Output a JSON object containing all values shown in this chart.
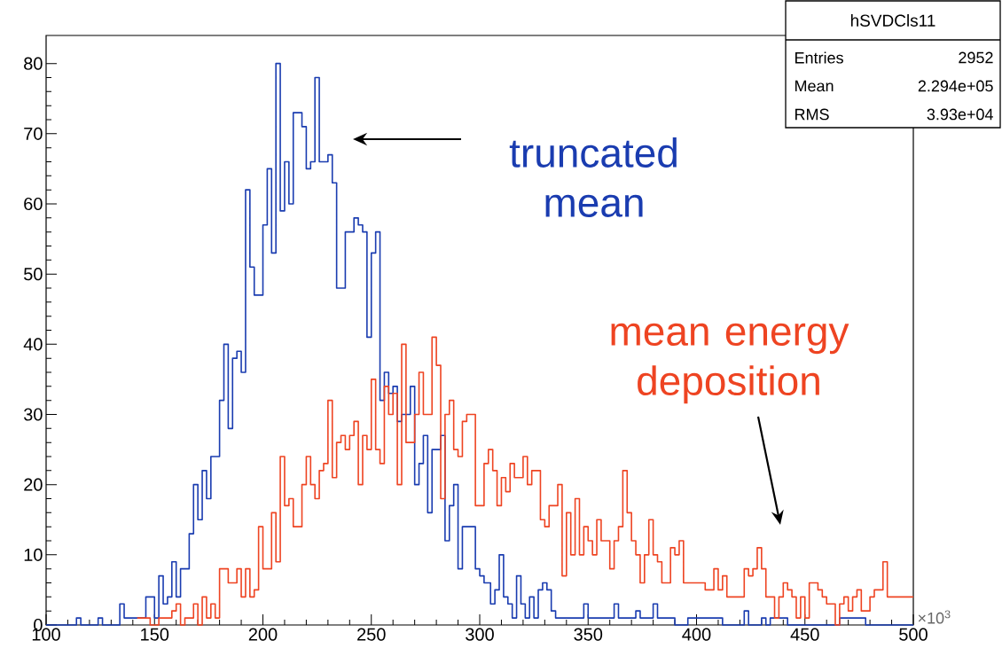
{
  "chart_data": {
    "type": "step",
    "xlim": [
      100,
      500
    ],
    "ylim": [
      0,
      84
    ],
    "xticks": [
      100,
      150,
      200,
      250,
      300,
      350,
      400,
      450,
      500
    ],
    "yticks": [
      0,
      10,
      20,
      30,
      40,
      50,
      60,
      70,
      80
    ],
    "series": [
      {
        "color": "#1a3cb0",
        "x": [
          100,
          114,
          116,
          124,
          126,
          134,
          136,
          146,
          150,
          152,
          154,
          156,
          158,
          160,
          162,
          166,
          168,
          170,
          172,
          174,
          176,
          180,
          182,
          184,
          186,
          188,
          190,
          192,
          194,
          196,
          198,
          200,
          202,
          204,
          206,
          208,
          210,
          212,
          214,
          216,
          218,
          220,
          222,
          224,
          226,
          230,
          232,
          234,
          238,
          242,
          244,
          246,
          248,
          250,
          252,
          254,
          256,
          258,
          260,
          262,
          264,
          266,
          268,
          270,
          272,
          274,
          276,
          278,
          280,
          282,
          284,
          286,
          288,
          290,
          292,
          298,
          300,
          302,
          305,
          307,
          309,
          311,
          313,
          315,
          317,
          319,
          321,
          323,
          325,
          327,
          329,
          331,
          333,
          335,
          348,
          350,
          362,
          364,
          372,
          374,
          380,
          382,
          390,
          396,
          412,
          422,
          424,
          430,
          432,
          434,
          442,
          466,
          478,
          500
        ],
        "values": [
          0,
          1,
          0,
          1,
          0,
          3,
          1,
          4,
          1,
          7,
          3,
          4,
          9,
          4,
          8,
          13,
          20,
          15,
          22,
          18,
          24,
          32,
          40,
          28,
          38,
          39,
          36,
          62,
          51,
          47,
          47,
          57,
          65,
          53,
          80,
          59,
          66,
          60,
          73,
          73,
          71,
          65,
          66,
          78,
          66,
          67,
          63,
          48,
          56,
          58,
          57,
          56,
          41,
          53,
          56,
          32,
          36,
          33,
          34,
          29,
          30,
          30,
          34,
          20,
          23,
          27,
          16,
          25,
          25,
          27,
          12,
          17,
          20,
          8,
          14,
          8,
          7,
          6,
          3,
          5,
          10,
          4,
          3,
          1,
          7,
          3,
          1,
          4,
          1,
          5,
          6,
          5,
          2,
          1,
          3,
          1,
          3,
          1,
          2,
          1,
          3,
          1,
          0,
          1,
          0,
          2,
          0,
          1,
          0,
          1,
          0,
          1,
          0,
          0
        ]
      },
      {
        "color": "#ee4422",
        "x": [
          142,
          148,
          152,
          158,
          160,
          162,
          164,
          168,
          170,
          172,
          174,
          176,
          178,
          180,
          184,
          188,
          190,
          192,
          194,
          196,
          198,
          200,
          204,
          206,
          208,
          210,
          212,
          214,
          218,
          220,
          222,
          224,
          226,
          228,
          230,
          232,
          234,
          236,
          238,
          240,
          242,
          244,
          246,
          248,
          250,
          252,
          254,
          256,
          258,
          260,
          262,
          264,
          266,
          270,
          272,
          274,
          278,
          280,
          282,
          284,
          286,
          288,
          290,
          292,
          294,
          298,
          300,
          302,
          304,
          306,
          308,
          310,
          312,
          314,
          316,
          320,
          322,
          324,
          328,
          330,
          332,
          334,
          336,
          338,
          340,
          342,
          344,
          346,
          348,
          350,
          352,
          354,
          356,
          358,
          360,
          362,
          364,
          366,
          368,
          370,
          372,
          374,
          376,
          378,
          380,
          382,
          384,
          388,
          390,
          392,
          394,
          396,
          404,
          408,
          410,
          412,
          414,
          422,
          424,
          426,
          428,
          430,
          432,
          436,
          438,
          440,
          442,
          444,
          446,
          448,
          450,
          452,
          456,
          458,
          460,
          464,
          466,
          468,
          470,
          472,
          474,
          476,
          480,
          482,
          486,
          488,
          500
        ],
        "values": [
          1,
          0,
          1,
          2,
          3,
          0,
          1,
          3,
          0,
          4,
          1,
          3,
          1,
          8,
          6,
          8,
          4,
          8,
          4,
          5,
          14,
          8,
          16,
          9,
          24,
          17,
          18,
          14,
          20,
          24,
          20,
          18,
          22,
          23,
          32,
          21,
          26,
          27,
          25,
          27,
          29,
          20,
          27,
          25,
          35,
          25,
          23,
          34,
          30,
          33,
          20,
          40,
          26,
          30,
          36,
          30,
          41,
          37,
          18,
          30,
          32,
          25,
          24,
          29,
          30,
          17,
          17,
          23,
          25,
          22,
          17,
          21,
          19,
          23,
          21,
          24,
          20,
          22,
          15,
          14,
          17,
          17,
          20,
          7,
          16,
          10,
          18,
          10,
          14,
          12,
          10,
          15,
          12,
          12,
          8,
          12,
          14,
          22,
          16,
          12,
          10,
          6,
          10,
          15,
          10,
          9,
          6,
          11,
          10,
          12,
          6,
          6,
          5,
          8,
          5,
          7,
          4,
          8,
          7,
          8,
          11,
          8,
          4,
          1,
          4,
          6,
          5,
          4,
          1,
          4,
          1,
          6,
          5,
          4,
          3,
          0,
          3,
          4,
          2,
          4,
          5,
          2,
          4,
          5,
          9,
          4,
          4
        ]
      }
    ],
    "annotations": [
      "truncated mean",
      "mean energy deposition",
      "×10$^{3}$",
      "hSVDCls11",
      "Entries",
      "2952",
      "Mean",
      "2.294e+05",
      "RMS",
      "3.93e+04"
    ]
  }
}
